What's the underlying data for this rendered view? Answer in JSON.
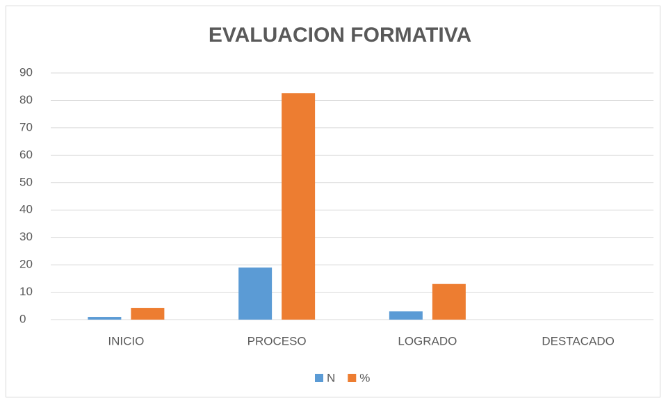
{
  "chart_data": {
    "type": "bar",
    "title": "EVALUACION FORMATIVA",
    "categories": [
      "INICIO",
      "PROCESO",
      "LOGRADO",
      "DESTACADO"
    ],
    "series": [
      {
        "name": "N",
        "color": "#5b9bd5",
        "values": [
          1,
          19,
          3,
          0
        ]
      },
      {
        "name": "%",
        "color": "#ed7d31",
        "values": [
          4.3,
          82.6,
          13,
          0
        ]
      }
    ],
    "ylim": [
      0,
      90
    ],
    "yticks": [
      0,
      10,
      20,
      30,
      40,
      50,
      60,
      70,
      80,
      90
    ],
    "grid": true,
    "legend": "bottom"
  }
}
